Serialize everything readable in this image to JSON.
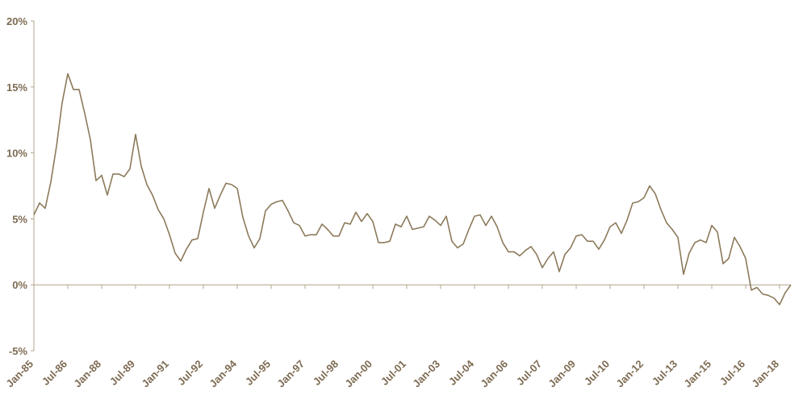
{
  "chart_data": {
    "type": "line",
    "color": "#8c7a5b",
    "categories": [
      "Jan-85",
      null,
      null,
      null,
      null,
      null,
      "Jul-86",
      null,
      null,
      null,
      null,
      null,
      "Jan-88",
      null,
      null,
      null,
      null,
      null,
      "Jul-89",
      null,
      null,
      null,
      null,
      null,
      "Jan-91",
      null,
      null,
      null,
      null,
      null,
      "Jul-92",
      null,
      null,
      null,
      null,
      null,
      "Jan-94",
      null,
      null,
      null,
      null,
      null,
      "Jul-95",
      null,
      null,
      null,
      null,
      null,
      "Jan-97",
      null,
      null,
      null,
      null,
      null,
      "Jul-98",
      null,
      null,
      null,
      null,
      null,
      "Jan-00",
      null,
      null,
      null,
      null,
      null,
      "Jul-01",
      null,
      null,
      null,
      null,
      null,
      "Jan-03",
      null,
      null,
      null,
      null,
      null,
      "Jul-04",
      null,
      null,
      null,
      null,
      null,
      "Jan-06",
      null,
      null,
      null,
      null,
      null,
      "Jul-07",
      null,
      null,
      null,
      null,
      null,
      "Jan-09",
      null,
      null,
      null,
      null,
      null,
      "Jul-10",
      null,
      null,
      null,
      null,
      null,
      "Jan-12",
      null,
      null,
      null,
      null,
      null,
      "Jul-13",
      null,
      null,
      null,
      null,
      null,
      "Jan-15",
      null,
      null,
      null,
      null,
      null,
      "Jul-16",
      null,
      null,
      null,
      null,
      null,
      "Jan-18",
      null,
      null
    ],
    "values": [
      5.3,
      6.2,
      5.8,
      7.8,
      10.5,
      13.8,
      16,
      14.8,
      14.8,
      13,
      11,
      7.9,
      8.3,
      6.8,
      8.4,
      8.4,
      8.2,
      8.8,
      11.4,
      9,
      7.6,
      6.8,
      5.7,
      5,
      3.8,
      2.4,
      1.8,
      2.7,
      3.4,
      3.5,
      5.5,
      7.3,
      5.8,
      6.8,
      7.7,
      7.6,
      7.3,
      5.1,
      3.7,
      2.8,
      3.5,
      5.6,
      6.1,
      6.3,
      6.4,
      5.6,
      4.7,
      4.5,
      3.7,
      3.8,
      3.8,
      4.6,
      4.2,
      3.7,
      3.7,
      4.7,
      4.6,
      5.5,
      4.8,
      5.4,
      4.8,
      3.2,
      3.2,
      3.3,
      4.6,
      4.4,
      5.2,
      4.2,
      4.3,
      4.4,
      5.2,
      4.9,
      4.5,
      5.2,
      3.3,
      2.8,
      3.1,
      4.2,
      5.2,
      5.3,
      4.5,
      5.2,
      4.4,
      3.2,
      2.5,
      2.5,
      2.2,
      2.6,
      2.9,
      2.3,
      1.3,
      2,
      2.5,
      1,
      2.3,
      2.8,
      3.7,
      3.8,
      3.3,
      3.3,
      2.7,
      3.4,
      4.4,
      4.7,
      3.9,
      4.9,
      6.2,
      6.3,
      6.6,
      7.5,
      6.9,
      5.7,
      4.7,
      4.2,
      3.6,
      0.8,
      2.4,
      3.2,
      3.4,
      3.2,
      4.5,
      4,
      1.6,
      2,
      3.6,
      2.9,
      2,
      -0.4,
      -0.2,
      -0.7,
      -0.8,
      -1,
      -1.5,
      -0.6,
      0
    ],
    "ylim": [
      -5,
      20
    ],
    "yticks": [
      {
        "value": -5,
        "label": "-5%"
      },
      {
        "value": 0,
        "label": "0%"
      },
      {
        "value": 5,
        "label": "5%"
      },
      {
        "value": 10,
        "label": "10%"
      },
      {
        "value": 15,
        "label": "15%"
      },
      {
        "value": 20,
        "label": "20%"
      }
    ]
  }
}
